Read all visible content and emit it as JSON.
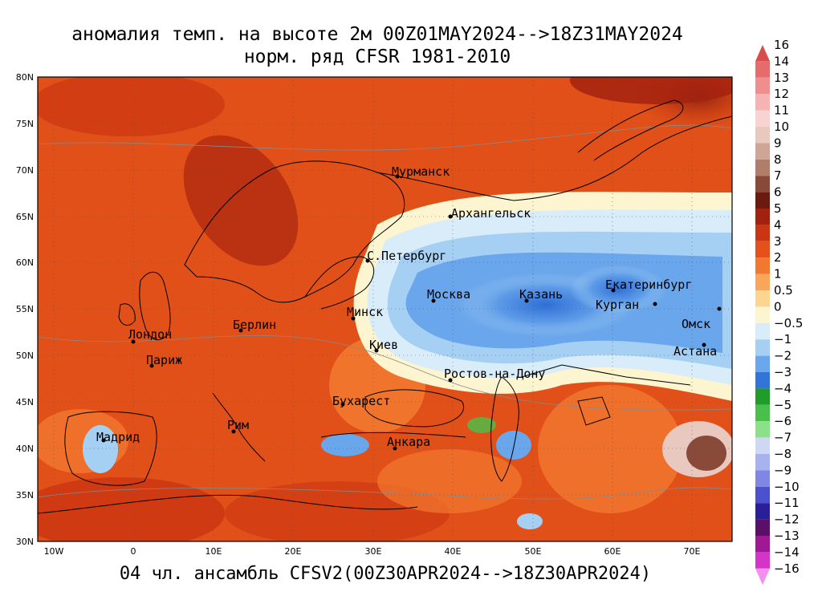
{
  "title": {
    "line1": "аномалия темп. на высоте 2м 00Z01MAY2024-->18Z31MAY2024",
    "line2": "норм. ряд CFSR 1981-2010"
  },
  "footer": "04 чл. ансамбль CFSV2(00Z30APR2024-->18Z30APR2024)",
  "axes": {
    "lat_labels": [
      "80N",
      "75N",
      "70N",
      "65N",
      "60N",
      "55N",
      "50N",
      "45N",
      "40N",
      "35N",
      "30N"
    ],
    "lon_labels": [
      "10W",
      "0",
      "10E",
      "20E",
      "30E",
      "40E",
      "50E",
      "60E",
      "70E"
    ]
  },
  "cities": [
    {
      "name": "Мурманск"
    },
    {
      "name": "Архангельск"
    },
    {
      "name": "С.Петербург"
    },
    {
      "name": "Москва"
    },
    {
      "name": "Казань"
    },
    {
      "name": "Екатеринбург"
    },
    {
      "name": "Курган"
    },
    {
      "name": "Омск"
    },
    {
      "name": "Астана"
    },
    {
      "name": "Минск"
    },
    {
      "name": "Киев"
    },
    {
      "name": "Ростов-на-Дону"
    },
    {
      "name": "Бухарест"
    },
    {
      "name": "Анкара"
    },
    {
      "name": "Берлин"
    },
    {
      "name": "Лондон"
    },
    {
      "name": "Париж"
    },
    {
      "name": "Рим"
    },
    {
      "name": "Мадрид"
    }
  ],
  "legend": [
    {
      "label": "16",
      "color": "#d94c4c"
    },
    {
      "label": "14",
      "color": "#e86b6b"
    },
    {
      "label": "13",
      "color": "#f08e8e"
    },
    {
      "label": "12",
      "color": "#f6b3b3"
    },
    {
      "label": "11",
      "color": "#f9d2d2"
    },
    {
      "label": "10",
      "color": "#e9c8bf"
    },
    {
      "label": "9",
      "color": "#cfa596"
    },
    {
      "label": "8",
      "color": "#b07d6b"
    },
    {
      "label": "7",
      "color": "#8a4a3a"
    },
    {
      "label": "6",
      "color": "#6b1a10"
    },
    {
      "label": "5",
      "color": "#a3220f"
    },
    {
      "label": "4",
      "color": "#cc3512"
    },
    {
      "label": "3",
      "color": "#e5501b"
    },
    {
      "label": "2",
      "color": "#f2782f"
    },
    {
      "label": "1",
      "color": "#f9a65a"
    },
    {
      "label": "0.5",
      "color": "#fcd58e"
    },
    {
      "label": "0",
      "color": "#fdf4d0"
    },
    {
      "label": "−0.5",
      "color": "#d8ecf9"
    },
    {
      "label": "−1",
      "color": "#a6d0f3"
    },
    {
      "label": "−2",
      "color": "#6aa6ec"
    },
    {
      "label": "−3",
      "color": "#3274d9"
    },
    {
      "label": "−4",
      "color": "#1f9c2a"
    },
    {
      "label": "−5",
      "color": "#48c04a"
    },
    {
      "label": "−6",
      "color": "#8de08a"
    },
    {
      "label": "−7",
      "color": "#cfd8f3"
    },
    {
      "label": "−8",
      "color": "#a7b2ee"
    },
    {
      "label": "−9",
      "color": "#7f86e6"
    },
    {
      "label": "−10",
      "color": "#4c52cf"
    },
    {
      "label": "−11",
      "color": "#2a1f99"
    },
    {
      "label": "−12",
      "color": "#5a1066"
    },
    {
      "label": "−13",
      "color": "#a01894"
    },
    {
      "label": "−14",
      "color": "#d633c8"
    },
    {
      "label": "−16",
      "color": "#f28ff0"
    }
  ]
}
